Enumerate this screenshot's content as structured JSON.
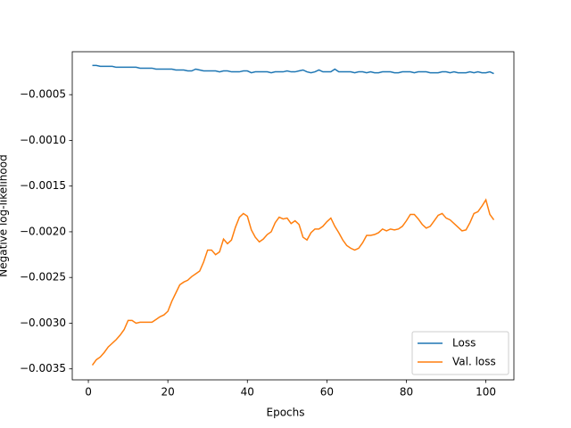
{
  "chart_data": {
    "type": "line",
    "xlabel": "Epochs",
    "ylabel": "Negative log-likelihood",
    "x": [
      1,
      2,
      3,
      4,
      5,
      6,
      7,
      8,
      9,
      10,
      11,
      12,
      13,
      14,
      15,
      16,
      17,
      18,
      19,
      20,
      21,
      22,
      23,
      24,
      25,
      26,
      27,
      28,
      29,
      30,
      31,
      32,
      33,
      34,
      35,
      36,
      37,
      38,
      39,
      40,
      41,
      42,
      43,
      44,
      45,
      46,
      47,
      48,
      49,
      50,
      51,
      52,
      53,
      54,
      55,
      56,
      57,
      58,
      59,
      60,
      61,
      62,
      63,
      64,
      65,
      66,
      67,
      68,
      69,
      70,
      71,
      72,
      73,
      74,
      75,
      76,
      77,
      78,
      79,
      80,
      81,
      82,
      83,
      84,
      85,
      86,
      87,
      88,
      89,
      90,
      91,
      92,
      93,
      94,
      95,
      96,
      97,
      98,
      99,
      100,
      101,
      102
    ],
    "series": [
      {
        "name": "Loss",
        "color": "#1f77b4",
        "values": [
          -0.00018,
          -0.00018,
          -0.00019,
          -0.00019,
          -0.00019,
          -0.00019,
          -0.0002,
          -0.0002,
          -0.0002,
          -0.0002,
          -0.0002,
          -0.0002,
          -0.00021,
          -0.00021,
          -0.00021,
          -0.00021,
          -0.00022,
          -0.00022,
          -0.00022,
          -0.00022,
          -0.00022,
          -0.00023,
          -0.00023,
          -0.00023,
          -0.00024,
          -0.00024,
          -0.00022,
          -0.00023,
          -0.00024,
          -0.00024,
          -0.00024,
          -0.00024,
          -0.00025,
          -0.00024,
          -0.00024,
          -0.00025,
          -0.00025,
          -0.00025,
          -0.00024,
          -0.00024,
          -0.00026,
          -0.00025,
          -0.00025,
          -0.00025,
          -0.00025,
          -0.00026,
          -0.00025,
          -0.00025,
          -0.00025,
          -0.00024,
          -0.00025,
          -0.00025,
          -0.00024,
          -0.00023,
          -0.00025,
          -0.00026,
          -0.00025,
          -0.00023,
          -0.00025,
          -0.00025,
          -0.00025,
          -0.00022,
          -0.00025,
          -0.00025,
          -0.00025,
          -0.00025,
          -0.00026,
          -0.00025,
          -0.00025,
          -0.00026,
          -0.00025,
          -0.00026,
          -0.00026,
          -0.00025,
          -0.00025,
          -0.00025,
          -0.00026,
          -0.00026,
          -0.00025,
          -0.00025,
          -0.00025,
          -0.00026,
          -0.00025,
          -0.00025,
          -0.00025,
          -0.00026,
          -0.00026,
          -0.00026,
          -0.00025,
          -0.00025,
          -0.00026,
          -0.00025,
          -0.00026,
          -0.00026,
          -0.00026,
          -0.00025,
          -0.00026,
          -0.00025,
          -0.00026,
          -0.00026,
          -0.00025,
          -0.00027
        ]
      },
      {
        "name": "Val. loss",
        "color": "#ff7f0e",
        "values": [
          -0.00346,
          -0.0034,
          -0.00337,
          -0.00332,
          -0.00326,
          -0.00322,
          -0.00318,
          -0.00313,
          -0.00307,
          -0.00297,
          -0.00297,
          -0.003,
          -0.00299,
          -0.00299,
          -0.00299,
          -0.00299,
          -0.00296,
          -0.00293,
          -0.00291,
          -0.00287,
          -0.00276,
          -0.00267,
          -0.00258,
          -0.00255,
          -0.00253,
          -0.00249,
          -0.00246,
          -0.00243,
          -0.00233,
          -0.0022,
          -0.0022,
          -0.00225,
          -0.00222,
          -0.00208,
          -0.00213,
          -0.00209,
          -0.00195,
          -0.00184,
          -0.0018,
          -0.00183,
          -0.00198,
          -0.00206,
          -0.00211,
          -0.00208,
          -0.00203,
          -0.002,
          -0.0019,
          -0.00184,
          -0.00186,
          -0.00185,
          -0.00191,
          -0.00188,
          -0.00192,
          -0.00206,
          -0.00209,
          -0.00201,
          -0.00197,
          -0.00197,
          -0.00194,
          -0.00189,
          -0.00185,
          -0.00194,
          -0.00201,
          -0.00209,
          -0.00215,
          -0.00218,
          -0.0022,
          -0.00218,
          -0.00212,
          -0.00204,
          -0.00204,
          -0.00203,
          -0.00201,
          -0.00197,
          -0.00199,
          -0.00197,
          -0.00198,
          -0.00197,
          -0.00194,
          -0.00188,
          -0.00181,
          -0.00181,
          -0.00186,
          -0.00192,
          -0.00196,
          -0.00194,
          -0.00188,
          -0.00182,
          -0.0018,
          -0.00185,
          -0.00187,
          -0.00191,
          -0.00195,
          -0.00199,
          -0.00198,
          -0.0019,
          -0.0018,
          -0.00178,
          -0.00172,
          -0.00165,
          -0.00181,
          -0.00187
        ]
      }
    ],
    "xlim": [
      -4.05,
      107.05
    ],
    "xticks": [
      0,
      20,
      40,
      60,
      80,
      100
    ],
    "ylim": [
      -0.00362,
      -3e-05
    ],
    "yticks": [
      {
        "value": -0.0035,
        "label": "−0.0035"
      },
      {
        "value": -0.003,
        "label": "−0.0030"
      },
      {
        "value": -0.0025,
        "label": "−0.0025"
      },
      {
        "value": -0.002,
        "label": "−0.0020"
      },
      {
        "value": -0.0015,
        "label": "−0.0015"
      },
      {
        "value": -0.001,
        "label": "−0.0010"
      },
      {
        "value": -0.0005,
        "label": "−0.0005"
      }
    ],
    "legend": "lower right"
  }
}
